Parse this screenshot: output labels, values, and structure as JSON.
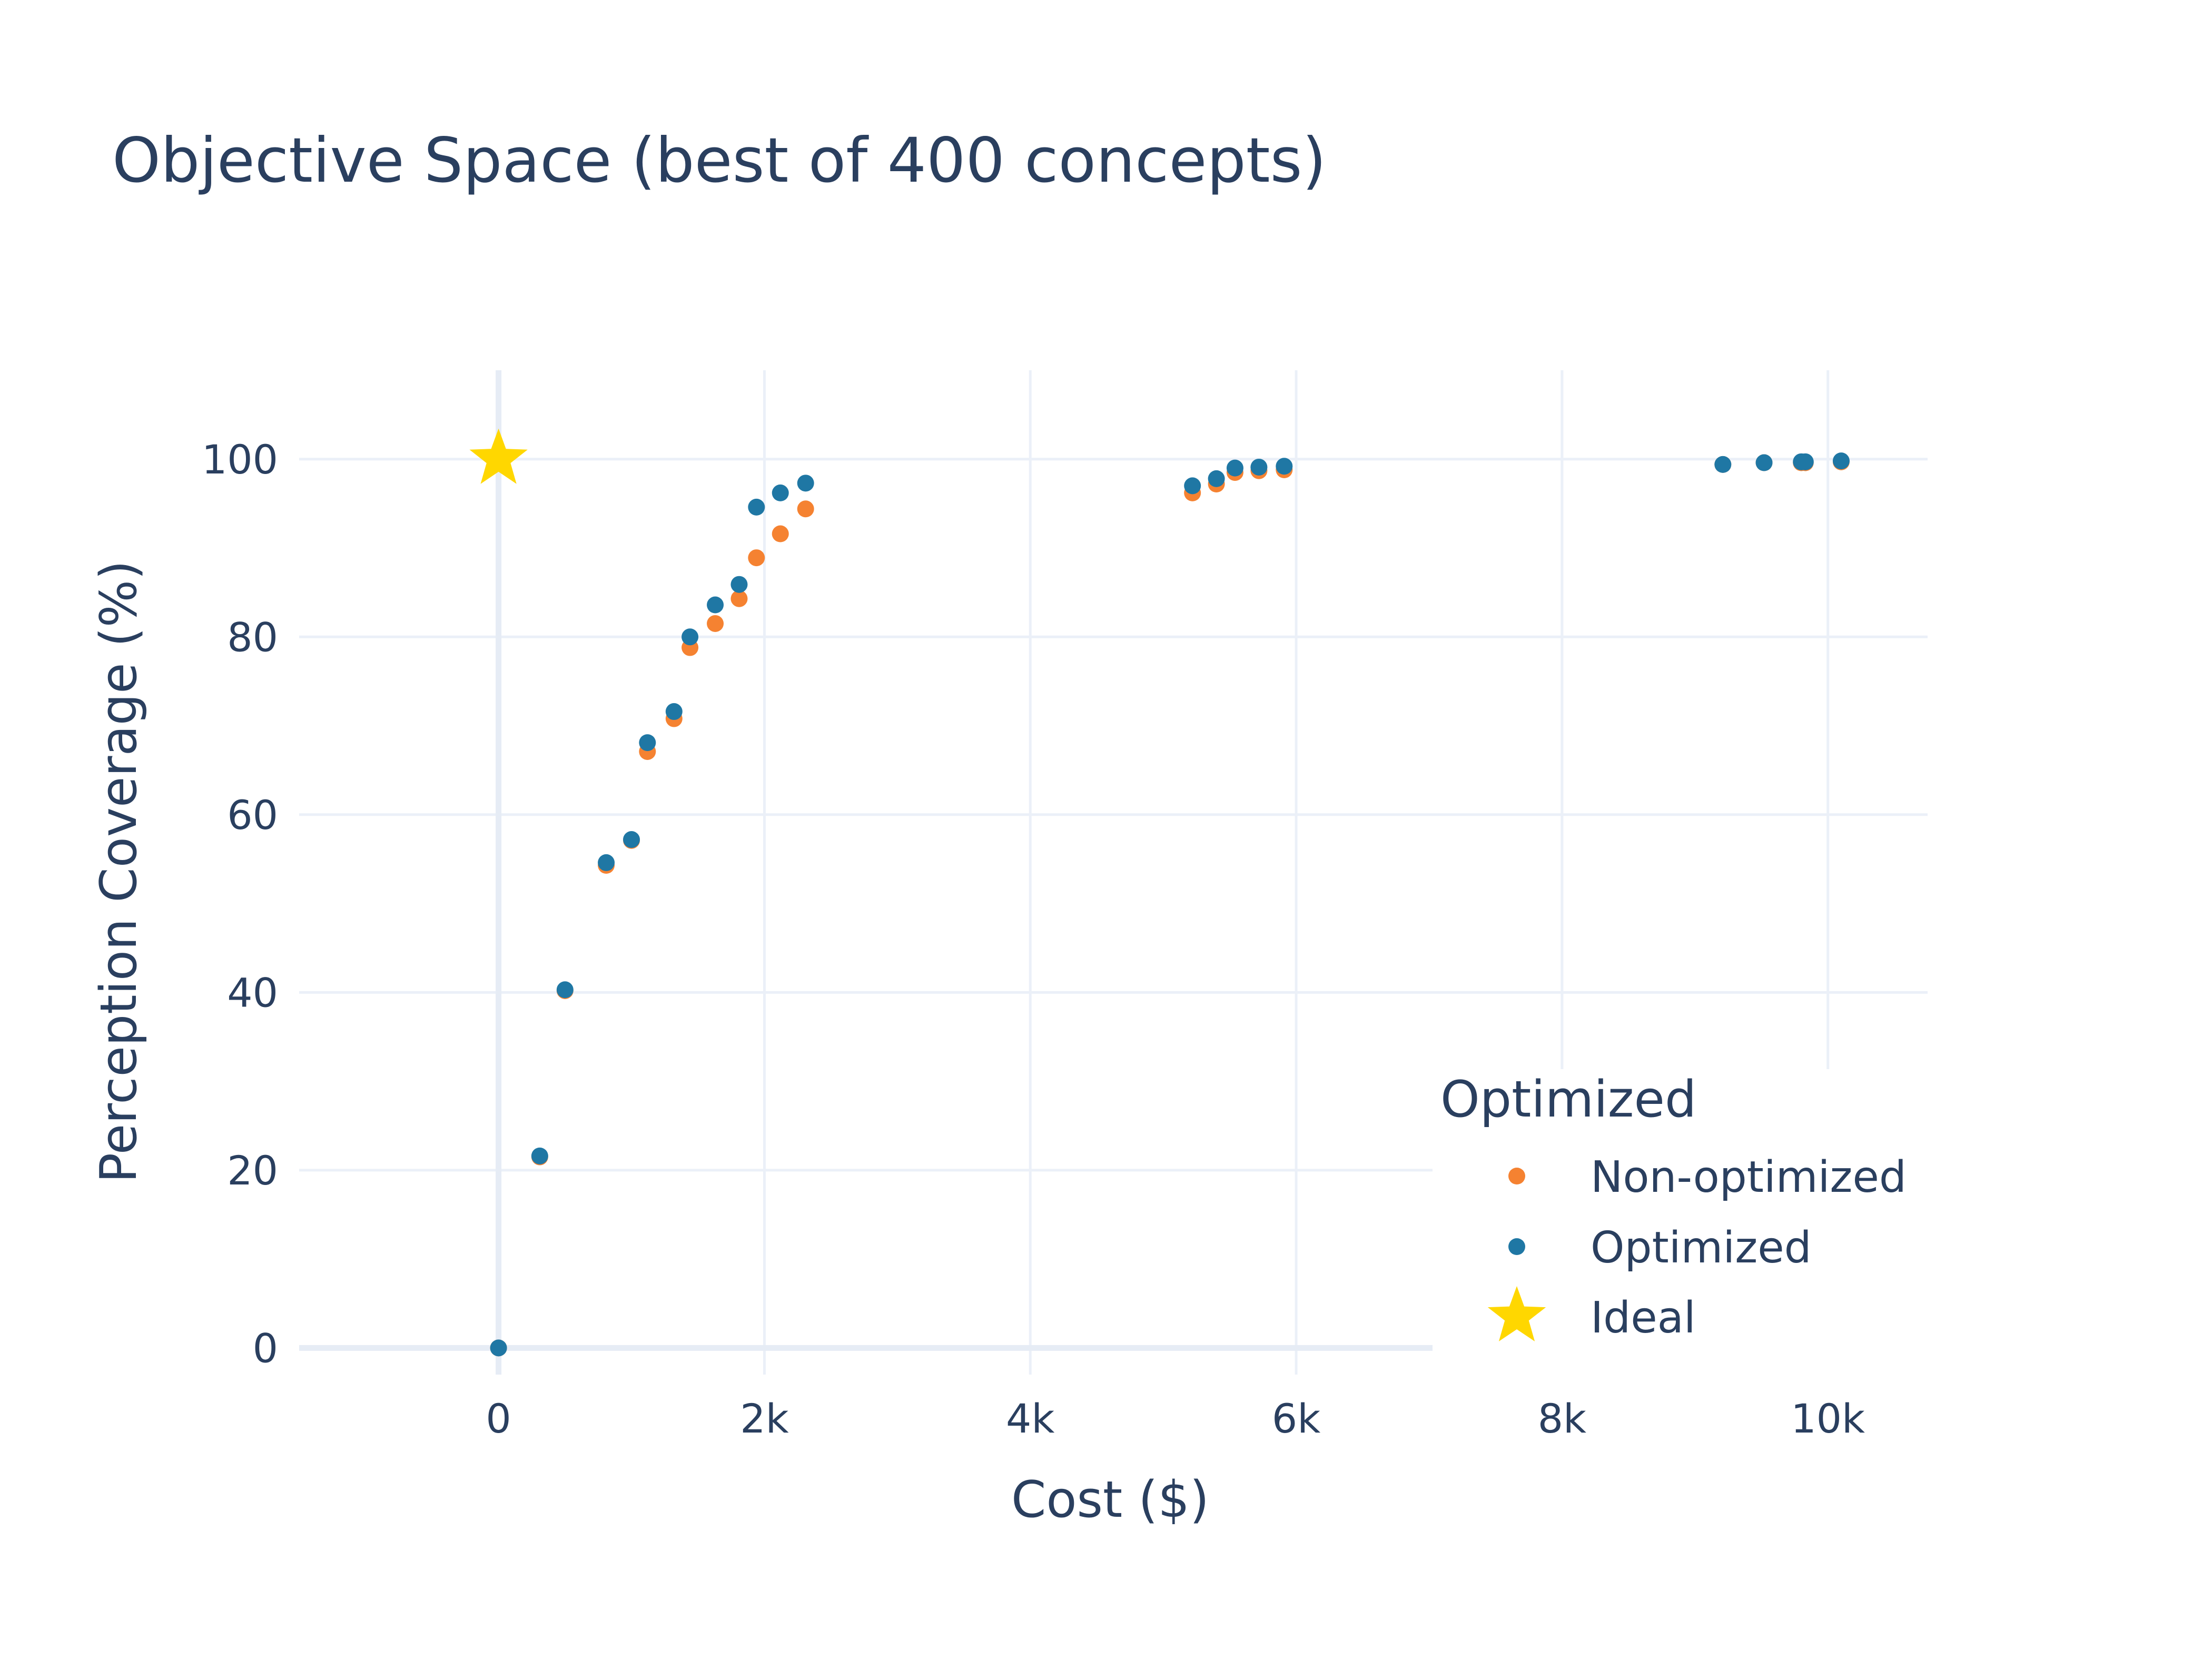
{
  "chart_data": {
    "type": "scatter",
    "title": "Objective Space (best of 400 concepts)",
    "xlabel": "Cost ($)",
    "ylabel": "Perception Coverage (%)",
    "xlim": [
      -1500,
      10750
    ],
    "ylim": [
      -3,
      110
    ],
    "x_ticks": [
      0,
      2000,
      4000,
      6000,
      8000,
      10000
    ],
    "x_tick_labels": [
      "0",
      "2k",
      "4k",
      "6k",
      "8k",
      "10k"
    ],
    "y_ticks": [
      0,
      20,
      40,
      60,
      80,
      100
    ],
    "y_tick_labels": [
      "0",
      "20",
      "40",
      "60",
      "80",
      "100"
    ],
    "grid": true,
    "legend": {
      "title": "Optimized",
      "placement": "bottom-right"
    },
    "series": [
      {
        "name": "Non-optimized",
        "marker": "circle",
        "color": "#f58231",
        "x": [
          0,
          310,
          500,
          810,
          1000,
          1120,
          1320,
          1440,
          1630,
          1810,
          1940,
          2120,
          2310,
          5220,
          5400,
          5540,
          5720,
          5910,
          9210,
          9520,
          9800,
          9830,
          10100
        ],
        "y": [
          0,
          21.5,
          40.2,
          54.3,
          57.1,
          67.1,
          70.8,
          78.8,
          81.5,
          84.3,
          88.9,
          91.6,
          94.4,
          96.2,
          97.2,
          98.5,
          98.7,
          98.8,
          99.4,
          99.6,
          99.6,
          99.6,
          99.7
        ]
      },
      {
        "name": "Optimized",
        "marker": "circle",
        "color": "#1f77a4",
        "x": [
          0,
          310,
          500,
          810,
          1000,
          1120,
          1320,
          1440,
          1630,
          1810,
          1940,
          2120,
          2310,
          5220,
          5400,
          5540,
          5720,
          5910,
          9210,
          9520,
          9800,
          9830,
          10100
        ],
        "y": [
          0,
          21.6,
          40.3,
          54.6,
          57.2,
          68.1,
          71.6,
          80.0,
          83.6,
          85.9,
          94.6,
          96.2,
          97.3,
          97.0,
          97.8,
          99.0,
          99.1,
          99.2,
          99.4,
          99.6,
          99.7,
          99.7,
          99.8
        ]
      },
      {
        "name": "Ideal",
        "marker": "star",
        "color": "#ffd700",
        "x": [
          0
        ],
        "y": [
          100
        ]
      }
    ]
  }
}
